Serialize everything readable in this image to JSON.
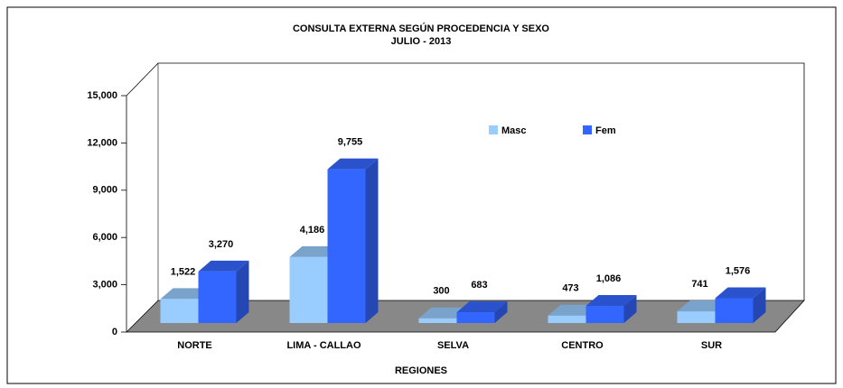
{
  "chart_data": {
    "type": "bar3d",
    "title": "CONSULTA EXTERNA SEGÚN PROCEDENCIA Y SEXO",
    "subtitle": "JULIO  - 2013",
    "x_label": "REGIONES",
    "categories": [
      "NORTE",
      "LIMA - CALLAO",
      "SELVA",
      "CENTRO",
      "SUR"
    ],
    "series": [
      {
        "name": "Masc",
        "color": "#99ccff",
        "values": [
          1522,
          4186,
          300,
          473,
          741
        ],
        "value_labels": [
          "1,522",
          "4,186",
          "300",
          "473",
          "741"
        ]
      },
      {
        "name": "Fem",
        "color": "#3366ff",
        "values": [
          3270,
          9755,
          683,
          1086,
          1576
        ],
        "value_labels": [
          "3,270",
          "9,755",
          "683",
          "1,086",
          "1,576"
        ]
      }
    ],
    "ylim": [
      0,
      15000
    ],
    "yticks": [
      0,
      {
        "value": 3000,
        "label": "3,000"
      },
      {
        "value": 6000,
        "label": "6,000"
      },
      {
        "value": 9000,
        "label": "9,000"
      },
      {
        "value": 12000,
        "label": "12,000"
      },
      {
        "value": 15000,
        "label": "15,000"
      }
    ],
    "legend": "top-right"
  }
}
